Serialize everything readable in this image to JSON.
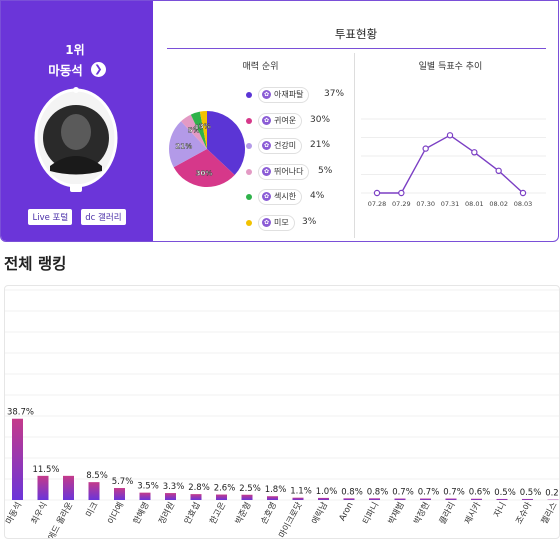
{
  "profile": {
    "rank_label": "1위",
    "name": "마동석",
    "go_icon": "chevron-right-icon",
    "buttons": [
      "Live 포털",
      "dc 갤러리"
    ]
  },
  "vote": {
    "title": "투표현황",
    "left_heading": "매력 순위",
    "right_heading": "일별 득표수 추이"
  },
  "colors": {
    "accent": "#6b35d9",
    "bar_top": "#c43a8a",
    "bar_bottom": "#6b35d9"
  },
  "chart_data": [
    {
      "type": "pie",
      "title": "매력 순위",
      "categories": [
        "아재파탈",
        "귀여운",
        "건강미",
        "뛰어나다",
        "섹시한",
        "미모"
      ],
      "values": [
        37,
        30,
        21,
        5,
        4,
        3
      ],
      "value_labels": [
        "37%",
        "30%",
        "21%",
        "5%",
        "4%",
        "3%"
      ],
      "slice_labels": [
        "",
        "30%",
        "21%",
        "5%",
        "4%",
        "3%"
      ],
      "colors": [
        "#5b35d5",
        "#d6388a",
        "#b39ae8",
        "#e39ac4",
        "#2fb24a",
        "#f2c200"
      ],
      "legend_position": "right"
    },
    {
      "type": "line",
      "title": "일별 득표수 추이",
      "x": [
        "07.28",
        "07.29",
        "07.30",
        "07.31",
        "08.01",
        "08.02",
        "08.03"
      ],
      "y": [
        0,
        0,
        0.6,
        0.78,
        0.55,
        0.3,
        0
      ],
      "grid": true,
      "color": "#7b3fc4"
    },
    {
      "type": "bar",
      "title": "전체 랭킹",
      "categories": [
        "마동석",
        "최우식",
        "에드 올라운",
        "미크",
        "이다예",
        "한혜영",
        "정려원",
        "안효섭",
        "한고은",
        "박준형",
        "손호영",
        "마이크로닷",
        "에릭남",
        "Aron",
        "티파니",
        "박재범",
        "박정현",
        "클라리",
        "제시카",
        "자니",
        "조슈아",
        "젤리스"
      ],
      "values": [
        38.7,
        11.5,
        11.5,
        8.5,
        5.7,
        3.5,
        3.3,
        2.8,
        2.6,
        2.5,
        1.8,
        1.1,
        1.0,
        0.8,
        0.8,
        0.7,
        0.7,
        0.7,
        0.6,
        0.5,
        0.5,
        0.2
      ],
      "value_labels": [
        "38.7%",
        "11.5%",
        "",
        "8.5%",
        "5.7%",
        "3.5%",
        "3.3%",
        "2.8%",
        "2.6%",
        "2.5%",
        "1.8%",
        "1.1%",
        "1.0%",
        "0.8%",
        "0.8%",
        "0.7%",
        "0.7%",
        "0.7%",
        "0.6%",
        "0.5%",
        "0.5%",
        "0.2%"
      ],
      "ylim": [
        0,
        100
      ],
      "grid": true
    }
  ],
  "ranking": {
    "title": "전체 랭킹"
  }
}
